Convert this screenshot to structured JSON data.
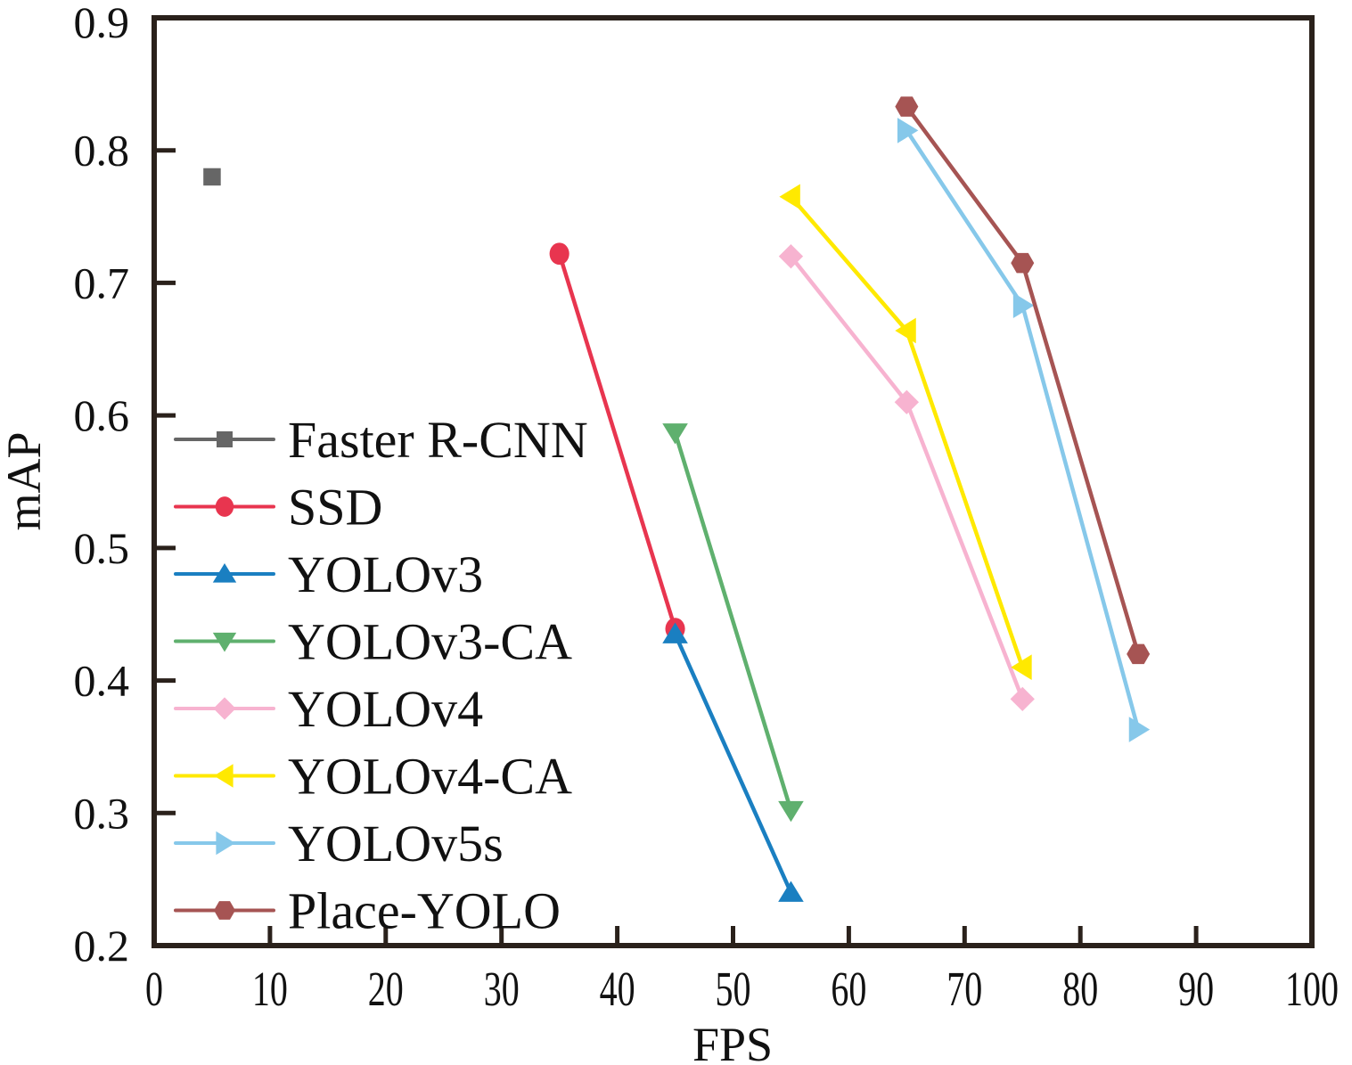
{
  "chart_data": {
    "type": "line",
    "title": "",
    "xlabel": "FPS",
    "ylabel": "mAP",
    "xlim": [
      0,
      100
    ],
    "ylim": [
      0.2,
      0.9
    ],
    "xticks": [
      0,
      10,
      20,
      30,
      40,
      50,
      60,
      70,
      80,
      90,
      100
    ],
    "xtick_labels": [
      "0",
      "10",
      "20",
      "30",
      "40",
      "50",
      "60",
      "70",
      "80",
      "90",
      "100"
    ],
    "yticks": [
      0.2,
      0.3,
      0.4,
      0.5,
      0.6,
      0.7,
      0.8,
      0.9
    ],
    "ytick_labels": [
      "0.2",
      "0.3",
      "0.4",
      "0.5",
      "0.6",
      "0.7",
      "0.8",
      "0.9"
    ],
    "grid": false,
    "legend_position": "bottom-left",
    "series": [
      {
        "name": "Faster R-CNN",
        "color": "#666666",
        "marker": "square",
        "x": [
          5
        ],
        "y": [
          0.78
        ]
      },
      {
        "name": "SSD",
        "color": "#e8354f",
        "marker": "circle",
        "x": [
          35,
          45
        ],
        "y": [
          0.722,
          0.439
        ]
      },
      {
        "name": "YOLOv3",
        "color": "#1a7fc1",
        "marker": "triangle-up",
        "x": [
          45,
          55
        ],
        "y": [
          0.435,
          0.24
        ]
      },
      {
        "name": "YOLOv3-CA",
        "color": "#5fb06e",
        "marker": "triangle-down",
        "x": [
          45,
          55
        ],
        "y": [
          0.587,
          0.302
        ]
      },
      {
        "name": "YOLOv4",
        "color": "#f7b3d0",
        "marker": "diamond",
        "x": [
          55,
          65,
          75
        ],
        "y": [
          0.72,
          0.61,
          0.386
        ]
      },
      {
        "name": "YOLOv4-CA",
        "color": "#ffe900",
        "marker": "triangle-left",
        "x": [
          55,
          65,
          75
        ],
        "y": [
          0.765,
          0.664,
          0.41
        ]
      },
      {
        "name": "YOLOv5s",
        "color": "#86c8ea",
        "marker": "triangle-right",
        "x": [
          65,
          75,
          85
        ],
        "y": [
          0.815,
          0.683,
          0.363
        ]
      },
      {
        "name": "Place-YOLO",
        "color": "#a65453",
        "marker": "hexagon",
        "x": [
          65,
          75,
          85
        ],
        "y": [
          0.833,
          0.715,
          0.42
        ]
      }
    ]
  }
}
